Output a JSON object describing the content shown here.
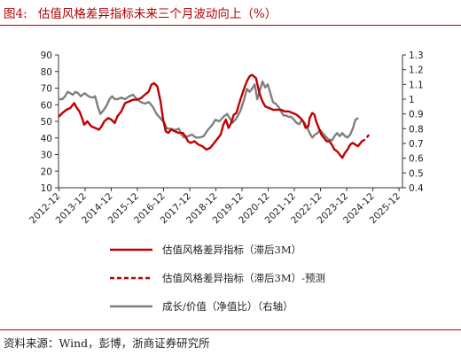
{
  "header": {
    "figure_no": "图4:",
    "title": "估值风格差异指标未来三个月波动向上（%）"
  },
  "footer": {
    "source": "资料来源：Wind，彭博，浙商证券研究所"
  },
  "colors": {
    "red": "#c00000",
    "gray": "#7f7f7f",
    "title": "#b00000"
  },
  "chart_data": {
    "type": "line",
    "title": "估值风格差异指标未来三个月波动向上（%）",
    "x_tick_labels": [
      "2012-12",
      "2013-12",
      "2014-12",
      "2015-12",
      "2016-12",
      "2017-12",
      "2018-12",
      "2019-12",
      "2020-12",
      "2021-12",
      "2022-12",
      "2023-12",
      "2024-12",
      "2025-12"
    ],
    "x_range": [
      2012.9,
      2026.05
    ],
    "y_left": {
      "min": 10,
      "max": 90,
      "ticks": [
        10,
        20,
        30,
        40,
        50,
        60,
        70,
        80,
        90
      ]
    },
    "y_right": {
      "min": 0.4,
      "max": 1.3,
      "ticks": [
        "0.4",
        "0.5",
        "0.6",
        "0.7",
        "0.8",
        "0.9",
        "1",
        "1.1",
        "1.2",
        "1.3"
      ],
      "label": "右轴"
    },
    "series": [
      {
        "name": "估值风格差异指标（滞后3M）",
        "axis": "left",
        "style": "solid",
        "color": "#c00000",
        "points": [
          [
            2012.92,
            53
          ],
          [
            2013.05,
            55
          ],
          [
            2013.2,
            57
          ],
          [
            2013.35,
            58
          ],
          [
            2013.5,
            61
          ],
          [
            2013.6,
            58
          ],
          [
            2013.7,
            56
          ],
          [
            2013.8,
            52
          ],
          [
            2013.88,
            48
          ],
          [
            2014.0,
            50
          ],
          [
            2014.15,
            47
          ],
          [
            2014.3,
            46
          ],
          [
            2014.45,
            45
          ],
          [
            2014.55,
            47
          ],
          [
            2014.65,
            50
          ],
          [
            2014.8,
            52
          ],
          [
            2014.92,
            51
          ],
          [
            2015.05,
            49
          ],
          [
            2015.15,
            53
          ],
          [
            2015.3,
            56
          ],
          [
            2015.45,
            61
          ],
          [
            2015.6,
            62
          ],
          [
            2015.75,
            63
          ],
          [
            2015.9,
            63
          ],
          [
            2016.05,
            64
          ],
          [
            2016.2,
            66
          ],
          [
            2016.35,
            68
          ],
          [
            2016.45,
            72
          ],
          [
            2016.55,
            73
          ],
          [
            2016.68,
            71
          ],
          [
            2016.8,
            62
          ],
          [
            2016.9,
            51
          ],
          [
            2017.0,
            44
          ],
          [
            2017.1,
            43
          ],
          [
            2017.2,
            45
          ],
          [
            2017.35,
            44
          ],
          [
            2017.5,
            43
          ],
          [
            2017.65,
            43
          ],
          [
            2017.75,
            41
          ],
          [
            2017.85,
            38
          ],
          [
            2017.95,
            37
          ],
          [
            2018.1,
            38
          ],
          [
            2018.25,
            36
          ],
          [
            2018.4,
            35
          ],
          [
            2018.55,
            33
          ],
          [
            2018.7,
            34
          ],
          [
            2018.85,
            37
          ],
          [
            2019.0,
            40
          ],
          [
            2019.1,
            42
          ],
          [
            2019.2,
            48
          ],
          [
            2019.3,
            51
          ],
          [
            2019.4,
            46
          ],
          [
            2019.5,
            49
          ],
          [
            2019.6,
            54
          ],
          [
            2019.7,
            55
          ],
          [
            2019.85,
            63
          ],
          [
            2020.0,
            70
          ],
          [
            2020.1,
            74
          ],
          [
            2020.2,
            77
          ],
          [
            2020.3,
            78
          ],
          [
            2020.45,
            76
          ],
          [
            2020.55,
            69
          ],
          [
            2020.6,
            66
          ],
          [
            2020.7,
            62
          ],
          [
            2020.8,
            59
          ],
          [
            2020.95,
            58
          ],
          [
            2021.1,
            57
          ],
          [
            2021.25,
            57
          ],
          [
            2021.4,
            57
          ],
          [
            2021.55,
            56
          ],
          [
            2021.7,
            56
          ],
          [
            2021.85,
            55
          ],
          [
            2022.0,
            54
          ],
          [
            2022.15,
            52
          ],
          [
            2022.25,
            50
          ],
          [
            2022.35,
            46
          ],
          [
            2022.45,
            47
          ],
          [
            2022.5,
            52
          ],
          [
            2022.6,
            55
          ],
          [
            2022.68,
            54
          ],
          [
            2022.75,
            50
          ],
          [
            2022.85,
            46
          ],
          [
            2022.95,
            42
          ],
          [
            2023.05,
            40
          ],
          [
            2023.15,
            38
          ],
          [
            2023.25,
            38
          ],
          [
            2023.35,
            36
          ],
          [
            2023.45,
            33
          ],
          [
            2023.55,
            32
          ],
          [
            2023.65,
            30
          ],
          [
            2023.75,
            28
          ],
          [
            2023.85,
            31
          ],
          [
            2023.95,
            33
          ],
          [
            2024.05,
            36
          ],
          [
            2024.15,
            37
          ],
          [
            2024.25,
            36
          ],
          [
            2024.35,
            35
          ],
          [
            2024.45,
            37
          ],
          [
            2024.5,
            38
          ]
        ]
      },
      {
        "name": "估值风格差异指标（滞后3M）-预测",
        "axis": "left",
        "style": "dashed",
        "color": "#c00000",
        "points": [
          [
            2024.5,
            38
          ],
          [
            2024.62,
            39
          ],
          [
            2024.72,
            41
          ],
          [
            2024.82,
            43
          ]
        ]
      },
      {
        "name": "成长/价值（净值比）（右轴）",
        "axis": "right",
        "style": "solid",
        "color": "#7f7f7f",
        "points": [
          [
            2012.92,
            1.0
          ],
          [
            2013.05,
            1.0
          ],
          [
            2013.15,
            1.02
          ],
          [
            2013.25,
            1.05
          ],
          [
            2013.35,
            1.04
          ],
          [
            2013.45,
            1.03
          ],
          [
            2013.55,
            1.05
          ],
          [
            2013.65,
            1.04
          ],
          [
            2013.75,
            1.02
          ],
          [
            2013.9,
            1.04
          ],
          [
            2014.05,
            1.02
          ],
          [
            2014.2,
            1.01
          ],
          [
            2014.3,
            1.02
          ],
          [
            2014.4,
            0.95
          ],
          [
            2014.5,
            0.9
          ],
          [
            2014.6,
            0.92
          ],
          [
            2014.75,
            0.96
          ],
          [
            2014.85,
            1.0
          ],
          [
            2014.95,
            1.02
          ],
          [
            2015.05,
            1.0
          ],
          [
            2015.15,
            1.0
          ],
          [
            2015.3,
            1.01
          ],
          [
            2015.45,
            1.0
          ],
          [
            2015.6,
            1.02
          ],
          [
            2015.75,
            1.03
          ],
          [
            2015.9,
            1.0
          ],
          [
            2016.05,
            0.98
          ],
          [
            2016.2,
            0.97
          ],
          [
            2016.35,
            0.98
          ],
          [
            2016.5,
            0.95
          ],
          [
            2016.65,
            0.9
          ],
          [
            2016.8,
            0.87
          ],
          [
            2016.95,
            0.84
          ],
          [
            2017.05,
            0.8
          ],
          [
            2017.2,
            0.8
          ],
          [
            2017.35,
            0.79
          ],
          [
            2017.5,
            0.8
          ],
          [
            2017.6,
            0.76
          ],
          [
            2017.7,
            0.74
          ],
          [
            2017.85,
            0.75
          ],
          [
            2018.0,
            0.76
          ],
          [
            2018.15,
            0.74
          ],
          [
            2018.3,
            0.74
          ],
          [
            2018.45,
            0.75
          ],
          [
            2018.6,
            0.79
          ],
          [
            2018.75,
            0.82
          ],
          [
            2018.9,
            0.86
          ],
          [
            2019.05,
            0.85
          ],
          [
            2019.2,
            0.88
          ],
          [
            2019.35,
            0.9
          ],
          [
            2019.45,
            0.87
          ],
          [
            2019.55,
            0.84
          ],
          [
            2019.7,
            0.87
          ],
          [
            2019.85,
            0.92
          ],
          [
            2020.0,
            1.0
          ],
          [
            2020.1,
            1.07
          ],
          [
            2020.2,
            1.05
          ],
          [
            2020.3,
            1.07
          ],
          [
            2020.4,
            1.1
          ],
          [
            2020.5,
            1.0
          ],
          [
            2020.6,
            1.06
          ],
          [
            2020.7,
            1.12
          ],
          [
            2020.8,
            1.08
          ],
          [
            2020.9,
            1.1
          ],
          [
            2021.0,
            1.04
          ],
          [
            2021.1,
            0.98
          ],
          [
            2021.2,
            0.97
          ],
          [
            2021.3,
            0.95
          ],
          [
            2021.4,
            0.92
          ],
          [
            2021.5,
            0.89
          ],
          [
            2021.6,
            0.89
          ],
          [
            2021.7,
            0.88
          ],
          [
            2021.8,
            0.88
          ],
          [
            2021.9,
            0.86
          ],
          [
            2022.0,
            0.84
          ],
          [
            2022.1,
            0.83
          ],
          [
            2022.2,
            0.86
          ],
          [
            2022.3,
            0.84
          ],
          [
            2022.4,
            0.81
          ],
          [
            2022.5,
            0.77
          ],
          [
            2022.6,
            0.74
          ],
          [
            2022.7,
            0.76
          ],
          [
            2022.8,
            0.77
          ],
          [
            2022.9,
            0.79
          ],
          [
            2023.0,
            0.77
          ],
          [
            2023.1,
            0.75
          ],
          [
            2023.2,
            0.73
          ],
          [
            2023.35,
            0.72
          ],
          [
            2023.45,
            0.75
          ],
          [
            2023.55,
            0.77
          ],
          [
            2023.65,
            0.75
          ],
          [
            2023.75,
            0.77
          ],
          [
            2023.85,
            0.75
          ],
          [
            2023.95,
            0.74
          ],
          [
            2024.05,
            0.76
          ],
          [
            2024.15,
            0.8
          ],
          [
            2024.25,
            0.86
          ],
          [
            2024.33,
            0.87
          ]
        ]
      }
    ],
    "legend": {
      "position": "bottom",
      "entries": [
        "估值风格差异指标（滞后3M）",
        "估值风格差异指标（滞后3M）-预测",
        "成长/价值（净值比）（右轴）"
      ]
    }
  }
}
